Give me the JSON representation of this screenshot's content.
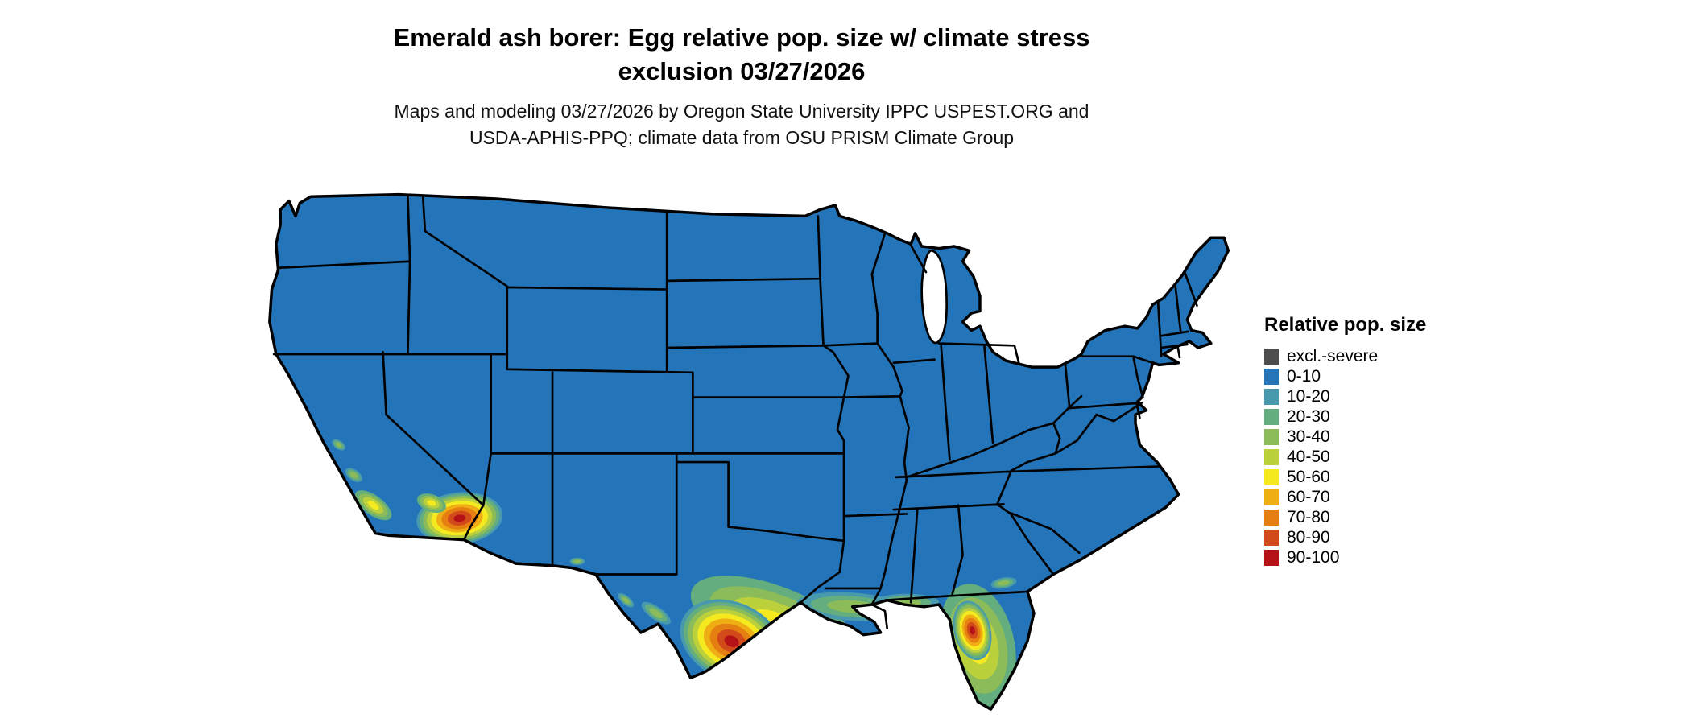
{
  "title": {
    "line1": "Emerald ash borer: Egg relative pop. size w/ climate stress",
    "line2": "exclusion 03/27/2026"
  },
  "subtitle": {
    "line1": "Maps and modeling 03/27/2026 by Oregon State University IPPC USPEST.ORG and",
    "line2": "USDA-APHIS-PPQ; climate data from OSU PRISM Climate Group"
  },
  "legend": {
    "title": "Relative pop. size",
    "items": [
      {
        "label": "excl.-severe",
        "color": "#4d4d4d"
      },
      {
        "label": "0-10",
        "color": "#2474b9"
      },
      {
        "label": "10-20",
        "color": "#4899ad"
      },
      {
        "label": "20-30",
        "color": "#63ad7e"
      },
      {
        "label": "30-40",
        "color": "#8cbc59"
      },
      {
        "label": "40-50",
        "color": "#bcd03c"
      },
      {
        "label": "50-60",
        "color": "#f5e920"
      },
      {
        "label": "60-70",
        "color": "#efae13"
      },
      {
        "label": "70-80",
        "color": "#e67f11"
      },
      {
        "label": "80-90",
        "color": "#d2491a"
      },
      {
        "label": "90-100",
        "color": "#b51218"
      }
    ]
  },
  "map": {
    "region": "Continental United States",
    "base_color": "#2474b9",
    "base_category": "0-10",
    "hotspot_regions": [
      {
        "area": "southern Texas",
        "range": "60-100"
      },
      {
        "area": "Texas Gulf Coast",
        "range": "30-60"
      },
      {
        "area": "southern Arizona",
        "range": "50-90"
      },
      {
        "area": "southern California coast",
        "range": "30-70"
      },
      {
        "area": "central Florida peninsula",
        "range": "40-80"
      },
      {
        "area": "Louisiana / Mississippi / Alabama Gulf Coast",
        "range": "20-50"
      },
      {
        "area": "Rio Grande valley (west Texas)",
        "range": "10-40"
      }
    ]
  }
}
